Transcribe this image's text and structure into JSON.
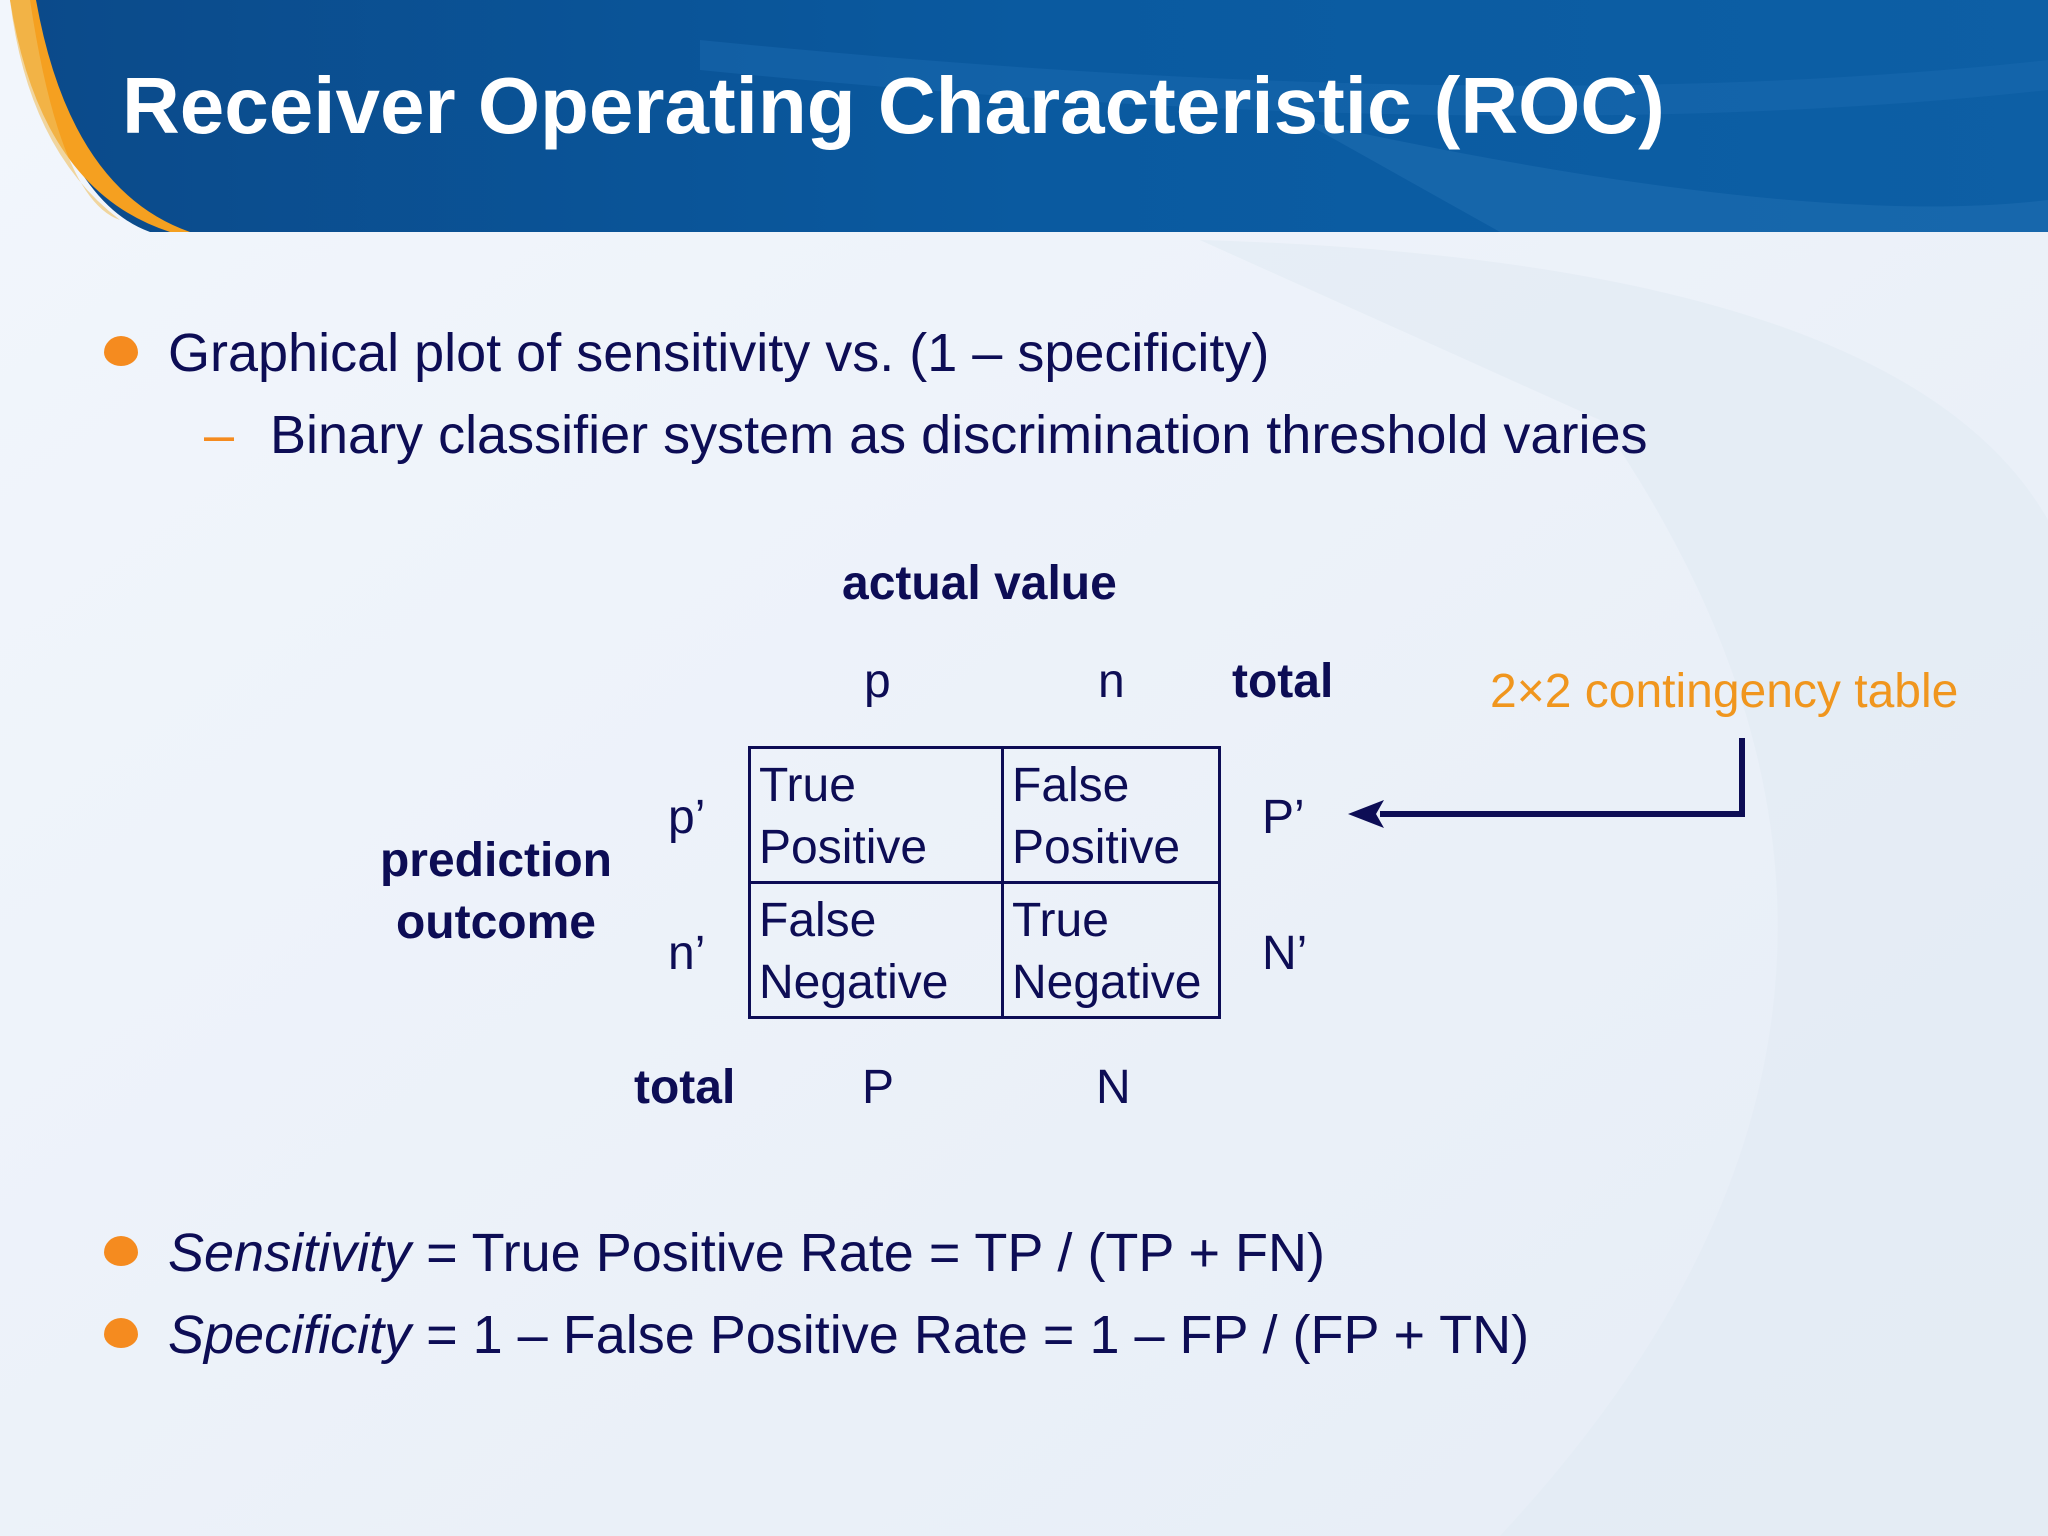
{
  "slide": {
    "title": "Receiver Operating Characteristic (ROC)"
  },
  "bullets": {
    "top": {
      "text": "Graphical plot of sensitivity vs. (1 – specificity)",
      "sub": "Binary classifier system as discrimination threshold varies",
      "dash": "–"
    },
    "formula1": {
      "term": "Sensitivity",
      "rest": " = True Positive Rate = TP / (TP + FN)"
    },
    "formula2": {
      "term": "Specificity",
      "rest": " = 1 – False Positive Rate = 1 – FP / (FP + TN)"
    }
  },
  "contingency": {
    "actual_header": "actual value",
    "col_p": "p",
    "col_n": "n",
    "col_total": "total",
    "row_header_line1": "prediction",
    "row_header_line2": "outcome",
    "row_p": "p’",
    "row_n": "n’",
    "row_total": "total",
    "cells": {
      "tp": "True\nPositive",
      "fp": "False\nPositive",
      "fn": "False\nNegative",
      "tn": "True\nNegative"
    },
    "row_totals": {
      "p": "P’",
      "n": "N’"
    },
    "col_totals": {
      "p": "P",
      "n": "N"
    },
    "annotation": "2×2 contingency table"
  },
  "colors": {
    "header_blue": "#0f4f8f",
    "accent_orange": "#f58b1f",
    "text_navy": "#0d0d55",
    "annotation_orange": "#f0961e"
  }
}
